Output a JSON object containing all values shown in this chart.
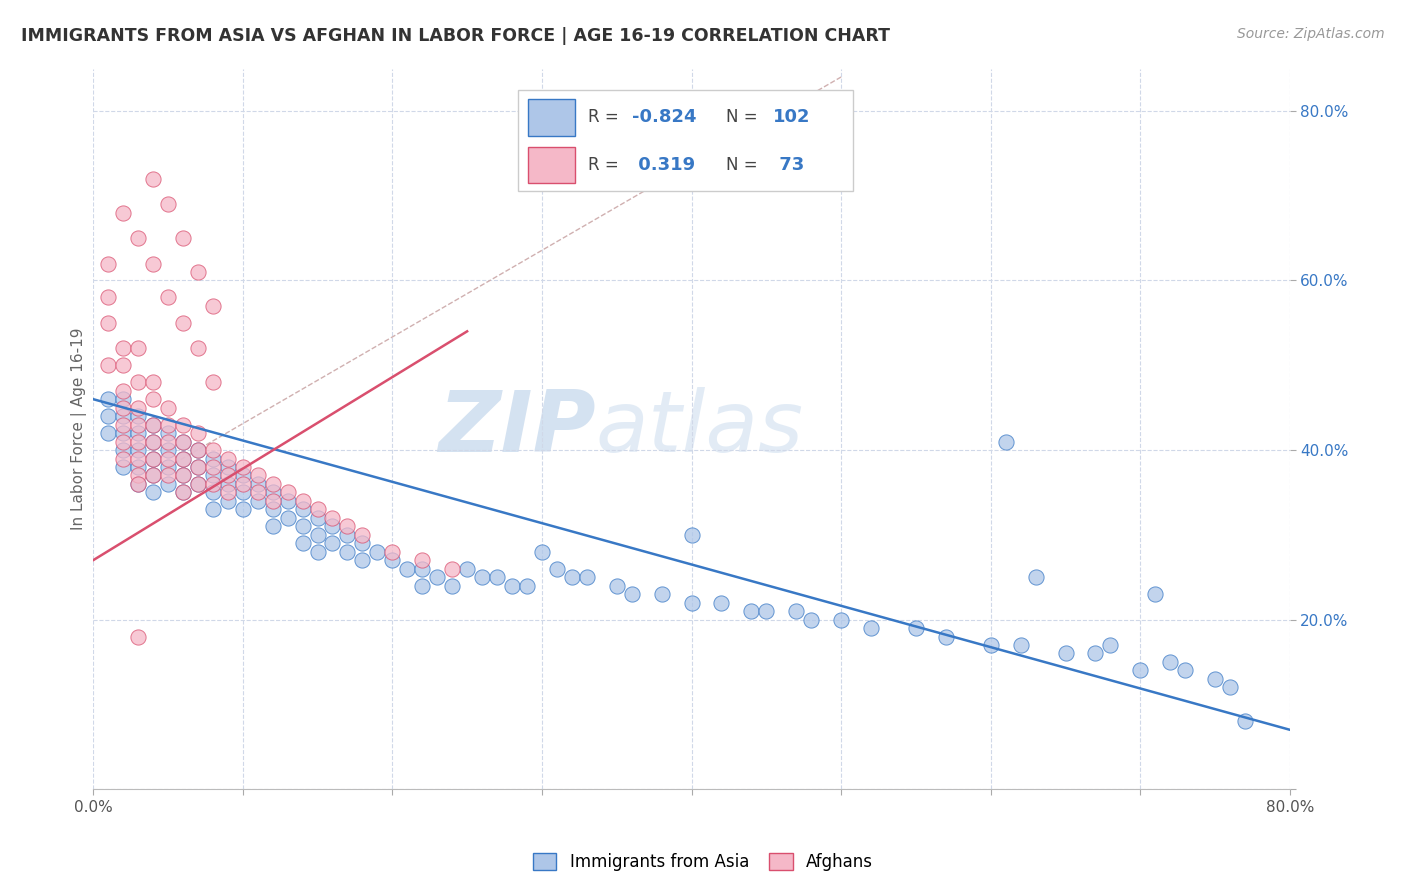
{
  "title": "IMMIGRANTS FROM ASIA VS AFGHAN IN LABOR FORCE | AGE 16-19 CORRELATION CHART",
  "source_text": "Source: ZipAtlas.com",
  "ylabel": "In Labor Force | Age 16-19",
  "xlim": [
    0.0,
    0.8
  ],
  "ylim": [
    0.0,
    0.85
  ],
  "x_ticks": [
    0.0,
    0.1,
    0.2,
    0.3,
    0.4,
    0.5,
    0.6,
    0.7,
    0.8
  ],
  "y_ticks": [
    0.0,
    0.2,
    0.4,
    0.6,
    0.8
  ],
  "blue_color": "#aec6e8",
  "pink_color": "#f5b8c8",
  "blue_line_color": "#3878c5",
  "pink_line_color": "#d94f6e",
  "trendline_dashed_color": "#d0b0b0",
  "background_color": "#ffffff",
  "grid_color": "#d0d8e8",
  "blue_scatter_x": [
    0.01,
    0.01,
    0.01,
    0.02,
    0.02,
    0.02,
    0.02,
    0.02,
    0.03,
    0.03,
    0.03,
    0.03,
    0.03,
    0.04,
    0.04,
    0.04,
    0.04,
    0.04,
    0.05,
    0.05,
    0.05,
    0.05,
    0.06,
    0.06,
    0.06,
    0.06,
    0.07,
    0.07,
    0.07,
    0.08,
    0.08,
    0.08,
    0.08,
    0.09,
    0.09,
    0.09,
    0.1,
    0.1,
    0.1,
    0.11,
    0.11,
    0.12,
    0.12,
    0.12,
    0.13,
    0.13,
    0.14,
    0.14,
    0.14,
    0.15,
    0.15,
    0.15,
    0.16,
    0.16,
    0.17,
    0.17,
    0.18,
    0.18,
    0.19,
    0.2,
    0.21,
    0.22,
    0.22,
    0.23,
    0.24,
    0.25,
    0.26,
    0.27,
    0.28,
    0.29,
    0.3,
    0.31,
    0.32,
    0.33,
    0.35,
    0.36,
    0.38,
    0.4,
    0.4,
    0.42,
    0.44,
    0.45,
    0.47,
    0.48,
    0.5,
    0.52,
    0.55,
    0.57,
    0.6,
    0.62,
    0.63,
    0.65,
    0.67,
    0.7,
    0.71,
    0.73,
    0.75,
    0.76,
    0.61,
    0.68,
    0.72,
    0.77
  ],
  "blue_scatter_y": [
    0.46,
    0.44,
    0.42,
    0.46,
    0.44,
    0.42,
    0.4,
    0.38,
    0.44,
    0.42,
    0.4,
    0.38,
    0.36,
    0.43,
    0.41,
    0.39,
    0.37,
    0.35,
    0.42,
    0.4,
    0.38,
    0.36,
    0.41,
    0.39,
    0.37,
    0.35,
    0.4,
    0.38,
    0.36,
    0.39,
    0.37,
    0.35,
    0.33,
    0.38,
    0.36,
    0.34,
    0.37,
    0.35,
    0.33,
    0.36,
    0.34,
    0.35,
    0.33,
    0.31,
    0.34,
    0.32,
    0.33,
    0.31,
    0.29,
    0.32,
    0.3,
    0.28,
    0.31,
    0.29,
    0.3,
    0.28,
    0.29,
    0.27,
    0.28,
    0.27,
    0.26,
    0.26,
    0.24,
    0.25,
    0.24,
    0.26,
    0.25,
    0.25,
    0.24,
    0.24,
    0.28,
    0.26,
    0.25,
    0.25,
    0.24,
    0.23,
    0.23,
    0.22,
    0.3,
    0.22,
    0.21,
    0.21,
    0.21,
    0.2,
    0.2,
    0.19,
    0.19,
    0.18,
    0.17,
    0.17,
    0.25,
    0.16,
    0.16,
    0.14,
    0.23,
    0.14,
    0.13,
    0.12,
    0.41,
    0.17,
    0.15,
    0.08
  ],
  "pink_scatter_x": [
    0.01,
    0.01,
    0.01,
    0.01,
    0.02,
    0.02,
    0.02,
    0.02,
    0.02,
    0.02,
    0.02,
    0.03,
    0.03,
    0.03,
    0.03,
    0.03,
    0.03,
    0.03,
    0.03,
    0.04,
    0.04,
    0.04,
    0.04,
    0.04,
    0.04,
    0.05,
    0.05,
    0.05,
    0.05,
    0.05,
    0.06,
    0.06,
    0.06,
    0.06,
    0.06,
    0.07,
    0.07,
    0.07,
    0.07,
    0.08,
    0.08,
    0.08,
    0.09,
    0.09,
    0.09,
    0.1,
    0.1,
    0.11,
    0.11,
    0.12,
    0.12,
    0.13,
    0.14,
    0.15,
    0.16,
    0.17,
    0.18,
    0.2,
    0.22,
    0.24,
    0.02,
    0.03,
    0.04,
    0.05,
    0.06,
    0.07,
    0.08,
    0.04,
    0.05,
    0.06,
    0.07,
    0.08,
    0.03
  ],
  "pink_scatter_y": [
    0.62,
    0.58,
    0.55,
    0.5,
    0.52,
    0.5,
    0.47,
    0.45,
    0.43,
    0.41,
    0.39,
    0.52,
    0.48,
    0.45,
    0.43,
    0.41,
    0.39,
    0.37,
    0.36,
    0.48,
    0.46,
    0.43,
    0.41,
    0.39,
    0.37,
    0.45,
    0.43,
    0.41,
    0.39,
    0.37,
    0.43,
    0.41,
    0.39,
    0.37,
    0.35,
    0.42,
    0.4,
    0.38,
    0.36,
    0.4,
    0.38,
    0.36,
    0.39,
    0.37,
    0.35,
    0.38,
    0.36,
    0.37,
    0.35,
    0.36,
    0.34,
    0.35,
    0.34,
    0.33,
    0.32,
    0.31,
    0.3,
    0.28,
    0.27,
    0.26,
    0.68,
    0.65,
    0.62,
    0.58,
    0.55,
    0.52,
    0.48,
    0.72,
    0.69,
    0.65,
    0.61,
    0.57,
    0.18
  ],
  "watermark1": "ZIP",
  "watermark2": "atlas"
}
